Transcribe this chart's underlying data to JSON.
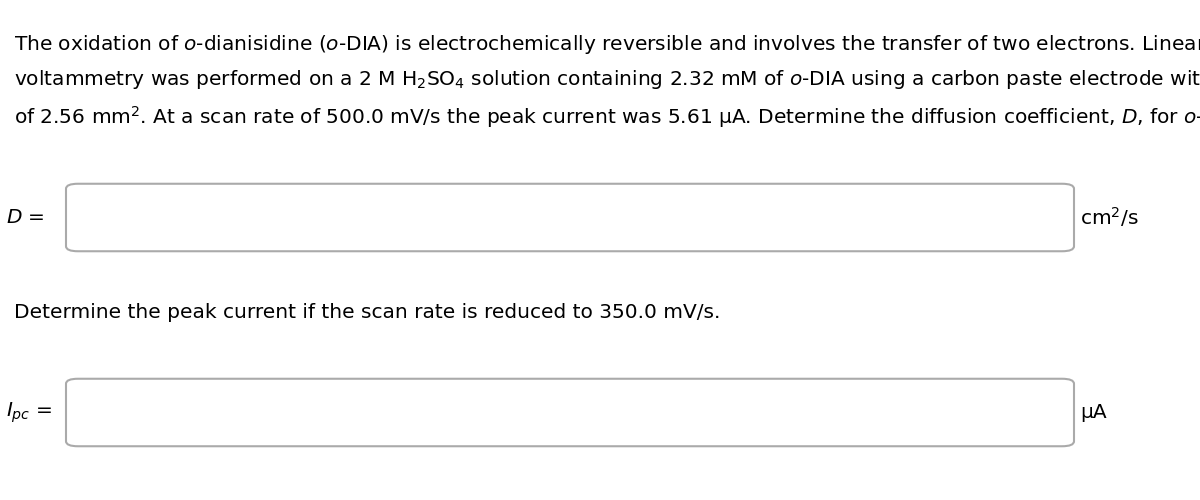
{
  "background_color": "#ffffff",
  "line1": "The oxidation of $\\mathit{o}$-dianisidine ($\\mathit{o}$-DIA) is electrochemically reversible and involves the transfer of two electrons. Linear sweep",
  "line2": "voltammetry was performed on a 2 M H$_2$SO$_4$ solution containing 2.32 mM of $\\mathit{o}$-DIA using a carbon paste electrode with an area",
  "line3": "of 2.56 mm$^2$. At a scan rate of 500.0 mV/s the peak current was 5.61 μA. Determine the diffusion coefficient, $D$, for $\\mathit{o}$-DIA.",
  "label1": "$D$ =",
  "unit1": "cm$^2$/s",
  "label2": "$\\mathit{I}_{pc}$ =",
  "unit2": "μA",
  "second_para": "Determine the peak current if the scan rate is reduced to 350.0 mV/s.",
  "box_edge_color": "#aaaaaa",
  "font_size_para": 14.5,
  "font_size_label": 14.5
}
